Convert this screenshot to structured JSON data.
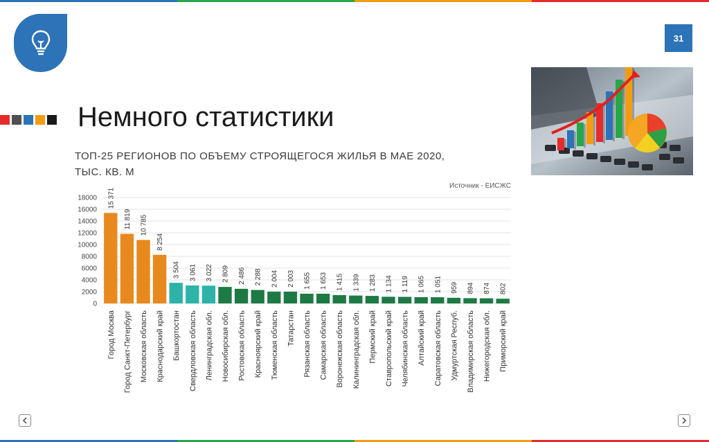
{
  "slide": {
    "title": "Немного статистики",
    "page_number": "31"
  },
  "decor": {
    "square_colors": [
      "#e52b2b",
      "#4f4f4f",
      "#2c73b8",
      "#f39c12",
      "#1a1a1a"
    ],
    "bar_colors": [
      "#e52b2b",
      "#2c73b8",
      "#27a64a",
      "#f39c12",
      "#e52b2b",
      "#2c73b8",
      "#27a64a",
      "#f39c12"
    ],
    "icons": {
      "logo": "lightbulb-icon",
      "prev": "chevron-left-icon",
      "next": "chevron-right-icon"
    }
  },
  "chart_data": {
    "type": "bar",
    "title_line1": "ТОП-25 РЕГИОНОВ ПО ОБЪЕМУ СТРОЯЩЕГОСЯ ЖИЛЬЯ В МАЕ 2020,",
    "title_line2": "ТЫС. КВ. М",
    "source": "Источник - ЕИСЖС",
    "ylim": [
      0,
      18000
    ],
    "yticks": [
      "0",
      "2000",
      "4000",
      "6000",
      "8000",
      "10000",
      "12000",
      "14000",
      "16000",
      "18000"
    ],
    "grid": true,
    "colors": {
      "orange": "#e8891e",
      "teal": "#2db3a8",
      "green": "#1e7a45"
    },
    "categories": [
      "Город Москва",
      "Город Санкт-Петербург",
      "Московская область",
      "Краснодарский край",
      "Башкортостан",
      "Свердловская область",
      "Ленинградская обл.",
      "Новосибирская обл.",
      "Ростовская область",
      "Красноярский край",
      "Тюменская область",
      "Татарстан",
      "Рязанская область",
      "Самарская область",
      "Воронежская область",
      "Калининградская обл.",
      "Пермский край",
      "Ставропольский край",
      "Челябинская область",
      "Алтайский край",
      "Саратовская область",
      "Удмуртская Респуб.",
      "Владимирская область",
      "Нижегородская обл.",
      "Приморский край"
    ],
    "values": [
      15371,
      11819,
      10785,
      8254,
      3504,
      3061,
      3022,
      2809,
      2486,
      2288,
      2004,
      2003,
      1655,
      1653,
      1415,
      1339,
      1283,
      1134,
      1119,
      1065,
      1051,
      959,
      894,
      874,
      802
    ],
    "value_labels": [
      "15 371",
      "11 819",
      "10 785",
      "8 254",
      "3 504",
      "3 061",
      "3 022",
      "2 809",
      "2 486",
      "2 288",
      "2 004",
      "2 003",
      "1 655",
      "1 653",
      "1 415",
      "1 339",
      "1 283",
      "1 134",
      "1 119",
      "1 065",
      "1 051",
      "959",
      "894",
      "874",
      "802"
    ],
    "bar_color_keys": [
      "orange",
      "orange",
      "orange",
      "orange",
      "teal",
      "teal",
      "teal",
      "green",
      "green",
      "green",
      "green",
      "green",
      "green",
      "green",
      "green",
      "green",
      "green",
      "green",
      "green",
      "green",
      "green",
      "green",
      "green",
      "green",
      "green"
    ]
  }
}
